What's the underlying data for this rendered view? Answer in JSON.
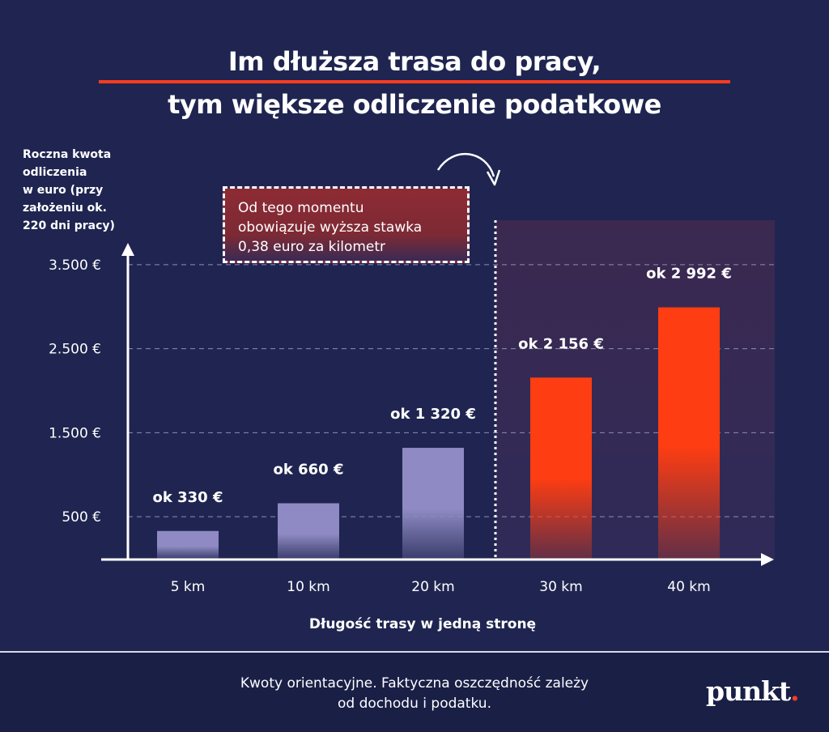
{
  "title": {
    "line1": "Im dłuższa trasa do pracy,",
    "line2": "tym większe odliczenie podatkowe"
  },
  "note": {
    "line1": "Od tego momentu",
    "line2": "obowiązuje wyższa stawka",
    "line3": "0,38 euro za kilometr"
  },
  "footnote": {
    "line1": "Kwoty orientacyjne. Faktyczna oszczędność zależy",
    "line2": "od dochodu i podatku."
  },
  "logo": {
    "text": "punkt",
    "dot": "."
  },
  "colors": {
    "background": "#1f2550",
    "bar_low": "#8f8ac3",
    "bar_high": "#ff3d12",
    "accent": "#ff3b1f",
    "highlight_zone": "#3a2a55"
  },
  "chart_data": {
    "type": "bar",
    "title": "Im dłuższa trasa do pracy, tym większe odliczenie podatkowe",
    "ylabel_lines": [
      "Roczna kwota",
      "odliczenia",
      "w euro (przy",
      "założeniu ok.",
      "220 dni pracy)"
    ],
    "xlabel": "Długość trasy w jedną stronę",
    "categories": [
      "5 km",
      "10 km",
      "20 km",
      "30 km",
      "40 km"
    ],
    "values": [
      330,
      660,
      1320,
      2156,
      2992
    ],
    "value_labels": [
      "ok 330 €",
      "ok 660 €",
      "ok 1 320 €",
      "ok  2 156 €",
      "ok   2 992 €"
    ],
    "higher_rate_from_index": 3,
    "yticks": [
      500,
      1500,
      2500,
      3500
    ],
    "ytick_labels": [
      "500 €",
      "1.500 €",
      "2.500 €",
      "3.500 €"
    ],
    "ylim": [
      0,
      4000
    ],
    "grid": true
  }
}
